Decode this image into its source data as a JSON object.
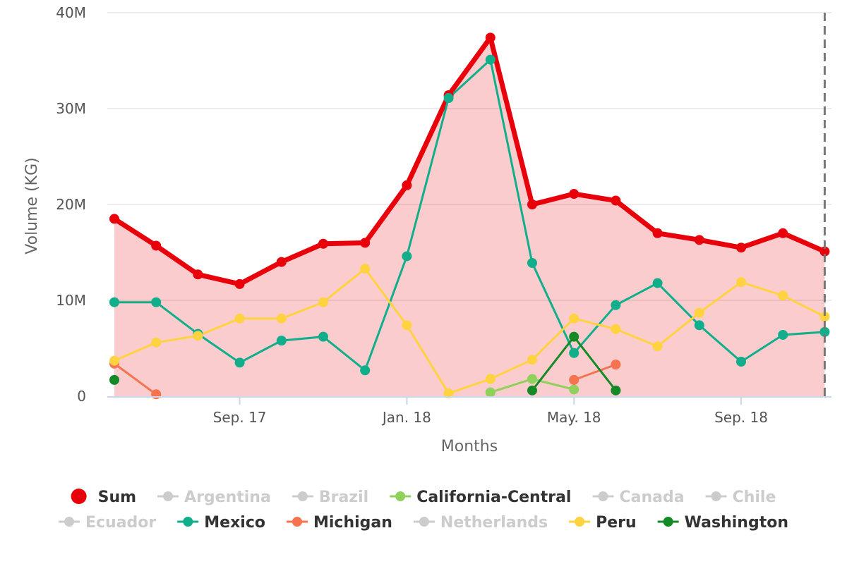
{
  "chart_data": {
    "type": "line",
    "xlabel": "Months",
    "ylabel": "Volume (KG)",
    "y_ticks": [
      "0",
      "10M",
      "20M",
      "30M",
      "40M"
    ],
    "ylim": [
      0,
      40000000
    ],
    "x_ticks": [
      {
        "index": 3,
        "label": "Sep. 17"
      },
      {
        "index": 7,
        "label": "Jan. 18"
      },
      {
        "index": 11,
        "label": "May. 18"
      },
      {
        "index": 15,
        "label": "Sep. 18"
      }
    ],
    "month_count": 18,
    "grid": true,
    "legend_position": "bottom",
    "series": [
      {
        "name": "Sum",
        "color": "#e8000b",
        "active": true,
        "area": true,
        "values": [
          18500000,
          15700000,
          12700000,
          11700000,
          14000000,
          15900000,
          16000000,
          22000000,
          31400000,
          37400000,
          20000000,
          21100000,
          20400000,
          17000000,
          16300000,
          15500000,
          17000000,
          15100000
        ]
      },
      {
        "name": "Argentina",
        "color": "#cccccc",
        "active": false,
        "values": []
      },
      {
        "name": "Brazil",
        "color": "#cccccc",
        "active": false,
        "values": []
      },
      {
        "name": "California-Central",
        "color": "#8fd15b",
        "active": true,
        "values": [
          null,
          null,
          null,
          null,
          null,
          null,
          null,
          null,
          null,
          400000,
          1800000,
          700000,
          null,
          null,
          null,
          null,
          null,
          null
        ]
      },
      {
        "name": "Canada",
        "color": "#cccccc",
        "active": false,
        "values": []
      },
      {
        "name": "Chile",
        "color": "#cccccc",
        "active": false,
        "values": []
      },
      {
        "name": "Ecuador",
        "color": "#cccccc",
        "active": false,
        "values": []
      },
      {
        "name": "Mexico",
        "color": "#10ae8a",
        "active": true,
        "values": [
          9800000,
          9800000,
          6500000,
          3500000,
          5800000,
          6200000,
          2700000,
          14600000,
          31100000,
          35100000,
          13900000,
          4500000,
          9500000,
          11800000,
          7400000,
          3600000,
          6400000,
          6700000
        ]
      },
      {
        "name": "Michigan",
        "color": "#f5734f",
        "active": true,
        "values": [
          3400000,
          200000,
          null,
          null,
          null,
          null,
          null,
          null,
          null,
          null,
          null,
          1700000,
          3300000,
          null,
          null,
          null,
          null,
          null
        ]
      },
      {
        "name": "Netherlands",
        "color": "#cccccc",
        "active": false,
        "values": []
      },
      {
        "name": "Peru",
        "color": "#ffd23f",
        "active": true,
        "values": [
          3700000,
          5600000,
          6300000,
          8100000,
          8100000,
          9800000,
          13300000,
          7400000,
          300000,
          1800000,
          3800000,
          8100000,
          7000000,
          5200000,
          8700000,
          11900000,
          10500000,
          8300000
        ]
      },
      {
        "name": "Washington",
        "color": "#138a26",
        "active": true,
        "values": [
          1700000,
          null,
          null,
          null,
          null,
          null,
          null,
          null,
          null,
          null,
          600000,
          6200000,
          600000,
          null,
          null,
          null,
          null,
          null
        ]
      }
    ]
  }
}
